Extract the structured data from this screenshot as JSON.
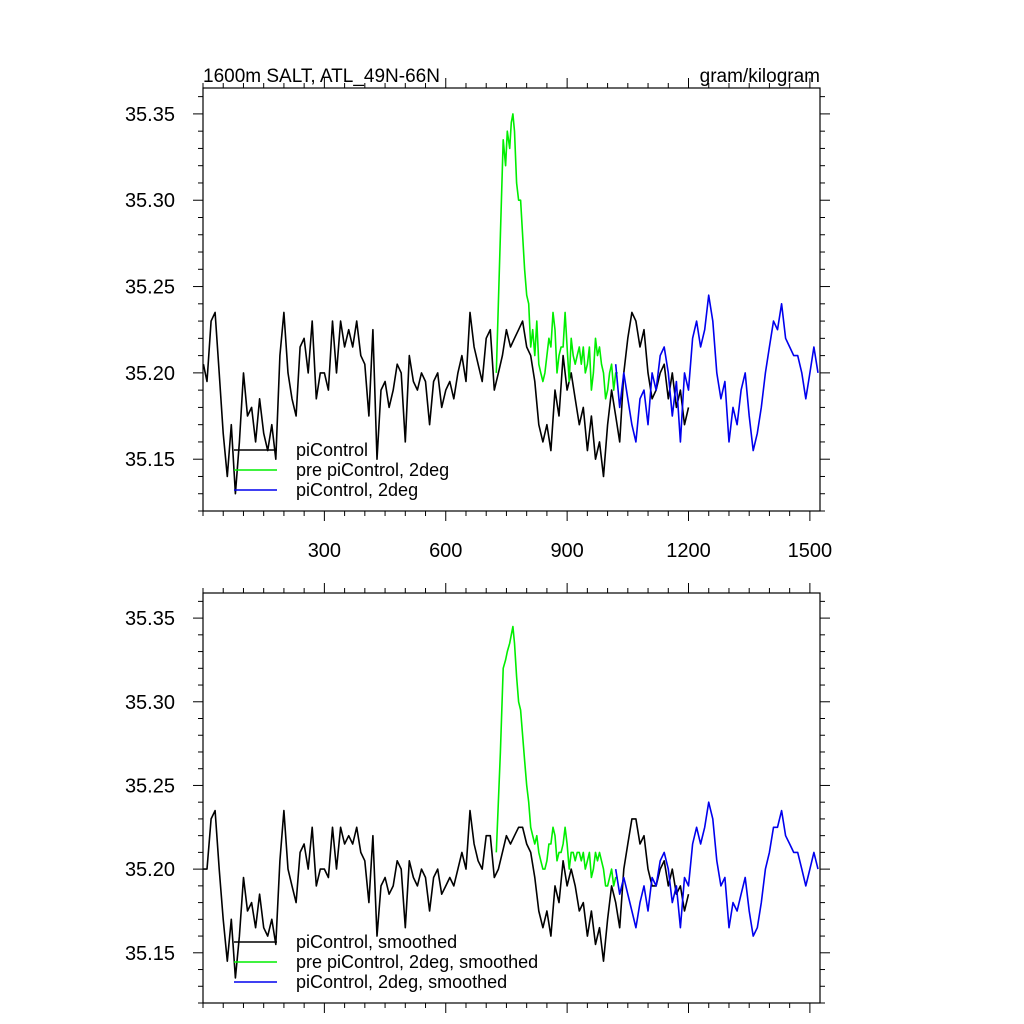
{
  "chart_data": [
    {
      "type": "line",
      "title": "1600m SALT, ATL_49N-66N",
      "units": "gram/kilogram",
      "xlim": [
        0,
        1525
      ],
      "ylim": [
        35.12,
        35.365
      ],
      "xticks": [
        300,
        600,
        900,
        1200,
        1500
      ],
      "yticks": [
        35.15,
        35.2,
        35.25,
        35.3,
        35.35
      ],
      "ytick_labels": [
        "35.15",
        "35.20",
        "35.25",
        "35.30",
        "35.35"
      ],
      "xtick_labels": [
        "300",
        "600",
        "900",
        "1200",
        "1500"
      ],
      "grid": false,
      "legend_position": "bottom-left",
      "series": [
        {
          "name": "piControl",
          "color": "#000000",
          "x": [
            1,
            10,
            20,
            30,
            40,
            50,
            60,
            70,
            80,
            90,
            100,
            110,
            120,
            130,
            140,
            150,
            160,
            170,
            180,
            190,
            200,
            210,
            220,
            230,
            240,
            250,
            260,
            270,
            280,
            290,
            300,
            310,
            320,
            330,
            340,
            350,
            360,
            370,
            380,
            390,
            400,
            410,
            420,
            430,
            440,
            450,
            460,
            470,
            480,
            490,
            500,
            510,
            520,
            530,
            540,
            550,
            560,
            570,
            580,
            590,
            600,
            610,
            620,
            630,
            640,
            650,
            660,
            670,
            680,
            690,
            700,
            710,
            720,
            730,
            740,
            750,
            760,
            770,
            780,
            790,
            800,
            810,
            820,
            830,
            840,
            850,
            860,
            870,
            880,
            890,
            900,
            910,
            920,
            930,
            940,
            950,
            960,
            970,
            980,
            990,
            1000,
            1010,
            1020,
            1030,
            1040,
            1050,
            1060,
            1070,
            1080,
            1090,
            1100,
            1110,
            1120,
            1130,
            1140,
            1150,
            1160,
            1170,
            1180,
            1190,
            1200
          ],
          "y": [
            35.205,
            35.195,
            35.23,
            35.235,
            35.2,
            35.165,
            35.14,
            35.17,
            35.13,
            35.16,
            35.2,
            35.175,
            35.18,
            35.16,
            35.185,
            35.165,
            35.155,
            35.17,
            35.15,
            35.21,
            35.235,
            35.2,
            35.185,
            35.175,
            35.215,
            35.22,
            35.2,
            35.23,
            35.185,
            35.2,
            35.2,
            35.19,
            35.23,
            35.2,
            35.23,
            35.215,
            35.225,
            35.215,
            35.23,
            35.21,
            35.205,
            35.175,
            35.225,
            35.15,
            35.19,
            35.195,
            35.18,
            35.19,
            35.205,
            35.2,
            35.16,
            35.21,
            35.195,
            35.19,
            35.2,
            35.195,
            35.17,
            35.195,
            35.2,
            35.18,
            35.19,
            35.195,
            35.185,
            35.2,
            35.21,
            35.195,
            35.235,
            35.215,
            35.205,
            35.195,
            35.22,
            35.225,
            35.19,
            35.2,
            35.21,
            35.225,
            35.215,
            35.22,
            35.225,
            35.23,
            35.215,
            35.21,
            35.195,
            35.17,
            35.16,
            35.17,
            35.155,
            35.19,
            35.175,
            35.21,
            35.19,
            35.2,
            35.185,
            35.17,
            35.18,
            35.155,
            35.175,
            35.15,
            35.16,
            35.14,
            35.17,
            35.19,
            35.175,
            35.16,
            35.2,
            35.22,
            35.235,
            35.23,
            35.215,
            35.225,
            35.2,
            35.185,
            35.19,
            35.2,
            35.205,
            35.185,
            35.2,
            35.18,
            35.19,
            35.17,
            35.18
          ]
        },
        {
          "name": "pre piControl, 2deg",
          "color": "#00ee00",
          "x": [
            725,
            735,
            742,
            748,
            752,
            758,
            762,
            766,
            770,
            775,
            780,
            785,
            790,
            795,
            800,
            805,
            810,
            815,
            820,
            825,
            830,
            835,
            840,
            845,
            850,
            855,
            860,
            865,
            870,
            875,
            880,
            885,
            890,
            895,
            900,
            905,
            910,
            915,
            920,
            925,
            930,
            935,
            940,
            945,
            950,
            955,
            960,
            965,
            970,
            975,
            980,
            985,
            990,
            995,
            1000,
            1005,
            1010,
            1015,
            1020,
            1025
          ],
          "y": [
            35.2,
            35.28,
            35.335,
            35.32,
            35.34,
            35.33,
            35.345,
            35.35,
            35.34,
            35.31,
            35.3,
            35.3,
            35.28,
            35.26,
            35.245,
            35.24,
            35.215,
            35.225,
            35.21,
            35.23,
            35.205,
            35.2,
            35.195,
            35.2,
            35.21,
            35.22,
            35.215,
            35.235,
            35.225,
            35.2,
            35.21,
            35.215,
            35.215,
            35.235,
            35.215,
            35.195,
            35.22,
            35.21,
            35.205,
            35.21,
            35.215,
            35.205,
            35.215,
            35.2,
            35.205,
            35.215,
            35.19,
            35.2,
            35.22,
            35.21,
            35.215,
            35.205,
            35.2,
            35.185,
            35.19,
            35.2,
            35.205,
            35.19,
            35.2,
            35.2
          ]
        },
        {
          "name": "piControl, 2deg",
          "color": "#0000ee",
          "x": [
            1020,
            1030,
            1040,
            1050,
            1060,
            1070,
            1080,
            1090,
            1100,
            1110,
            1120,
            1130,
            1140,
            1150,
            1160,
            1170,
            1180,
            1190,
            1200,
            1210,
            1220,
            1230,
            1240,
            1250,
            1260,
            1270,
            1280,
            1290,
            1300,
            1310,
            1320,
            1330,
            1340,
            1350,
            1360,
            1370,
            1380,
            1390,
            1400,
            1410,
            1420,
            1430,
            1440,
            1450,
            1460,
            1470,
            1480,
            1490,
            1500,
            1510,
            1520
          ],
          "y": [
            35.205,
            35.18,
            35.2,
            35.185,
            35.17,
            35.16,
            35.185,
            35.19,
            35.17,
            35.2,
            35.19,
            35.21,
            35.215,
            35.2,
            35.175,
            35.195,
            35.16,
            35.2,
            35.19,
            35.22,
            35.23,
            35.215,
            35.225,
            35.245,
            35.23,
            35.2,
            35.185,
            35.195,
            35.16,
            35.18,
            35.17,
            35.19,
            35.2,
            35.175,
            35.155,
            35.165,
            35.18,
            35.2,
            35.215,
            35.23,
            35.225,
            35.24,
            35.22,
            35.215,
            35.21,
            35.21,
            35.2,
            35.185,
            35.2,
            35.215,
            35.2
          ]
        }
      ]
    },
    {
      "type": "line",
      "xlim": [
        0,
        1525
      ],
      "ylim": [
        35.12,
        35.365
      ],
      "yticks": [
        35.15,
        35.2,
        35.25,
        35.3,
        35.35
      ],
      "ytick_labels": [
        "35.15",
        "35.20",
        "35.25",
        "35.30",
        "35.35"
      ],
      "grid": false,
      "legend_position": "bottom-left",
      "series": [
        {
          "name": "piControl, smoothed",
          "color": "#000000",
          "x": [
            1,
            10,
            20,
            30,
            40,
            50,
            60,
            70,
            80,
            90,
            100,
            110,
            120,
            130,
            140,
            150,
            160,
            170,
            180,
            190,
            200,
            210,
            220,
            230,
            240,
            250,
            260,
            270,
            280,
            290,
            300,
            310,
            320,
            330,
            340,
            350,
            360,
            370,
            380,
            390,
            400,
            410,
            420,
            430,
            440,
            450,
            460,
            470,
            480,
            490,
            500,
            510,
            520,
            530,
            540,
            550,
            560,
            570,
            580,
            590,
            600,
            610,
            620,
            630,
            640,
            650,
            660,
            670,
            680,
            690,
            700,
            710,
            720,
            730,
            740,
            750,
            760,
            770,
            780,
            790,
            800,
            810,
            820,
            830,
            840,
            850,
            860,
            870,
            880,
            890,
            900,
            910,
            920,
            930,
            940,
            950,
            960,
            970,
            980,
            990,
            1000,
            1010,
            1020,
            1030,
            1040,
            1050,
            1060,
            1070,
            1080,
            1090,
            1100,
            1110,
            1120,
            1130,
            1140,
            1150,
            1160,
            1170,
            1180,
            1190,
            1200
          ],
          "y": [
            35.2,
            35.2,
            35.23,
            35.235,
            35.2,
            35.17,
            35.145,
            35.17,
            35.135,
            35.16,
            35.195,
            35.175,
            35.18,
            35.165,
            35.185,
            35.165,
            35.16,
            35.17,
            35.155,
            35.205,
            35.235,
            35.2,
            35.19,
            35.18,
            35.21,
            35.215,
            35.2,
            35.225,
            35.19,
            35.2,
            35.2,
            35.195,
            35.225,
            35.2,
            35.225,
            35.215,
            35.22,
            35.215,
            35.225,
            35.21,
            35.205,
            35.18,
            35.22,
            35.16,
            35.19,
            35.195,
            35.185,
            35.19,
            35.205,
            35.2,
            35.165,
            35.205,
            35.195,
            35.19,
            35.2,
            35.195,
            35.175,
            35.195,
            35.2,
            35.185,
            35.19,
            35.195,
            35.19,
            35.2,
            35.21,
            35.2,
            35.235,
            35.215,
            35.205,
            35.2,
            35.22,
            35.22,
            35.195,
            35.2,
            35.21,
            35.22,
            35.215,
            35.22,
            35.225,
            35.225,
            35.215,
            35.21,
            35.195,
            35.175,
            35.165,
            35.175,
            35.16,
            35.19,
            35.18,
            35.205,
            35.19,
            35.2,
            35.19,
            35.175,
            35.18,
            35.16,
            35.175,
            35.155,
            35.165,
            35.145,
            35.17,
            35.19,
            35.18,
            35.165,
            35.2,
            35.215,
            35.23,
            35.23,
            35.215,
            35.22,
            35.2,
            35.19,
            35.19,
            35.2,
            35.205,
            35.19,
            35.2,
            35.185,
            35.19,
            35.175,
            35.185
          ]
        },
        {
          "name": "pre piControl, 2deg, smoothed",
          "color": "#00ee00",
          "x": [
            725,
            735,
            742,
            748,
            752,
            758,
            762,
            766,
            770,
            775,
            780,
            785,
            790,
            795,
            800,
            805,
            810,
            815,
            820,
            825,
            830,
            835,
            840,
            845,
            850,
            855,
            860,
            865,
            870,
            875,
            880,
            885,
            890,
            895,
            900,
            905,
            910,
            915,
            920,
            925,
            930,
            935,
            940,
            945,
            950,
            955,
            960,
            965,
            970,
            975,
            980,
            985,
            990,
            995,
            1000,
            1005,
            1010,
            1015,
            1020,
            1025
          ],
          "y": [
            35.21,
            35.27,
            35.32,
            35.325,
            35.33,
            35.335,
            35.34,
            35.345,
            35.335,
            35.315,
            35.3,
            35.295,
            35.28,
            35.265,
            35.25,
            35.24,
            35.225,
            35.22,
            35.215,
            35.22,
            35.21,
            35.205,
            35.2,
            35.2,
            35.205,
            35.215,
            35.215,
            35.225,
            35.22,
            35.205,
            35.21,
            35.21,
            35.215,
            35.225,
            35.215,
            35.2,
            35.21,
            35.21,
            35.205,
            35.21,
            35.21,
            35.205,
            35.21,
            35.2,
            35.205,
            35.21,
            35.195,
            35.2,
            35.21,
            35.205,
            35.21,
            35.205,
            35.2,
            35.19,
            35.19,
            35.195,
            35.2,
            35.19,
            35.195,
            35.195
          ]
        },
        {
          "name": "piControl, 2deg, smoothed",
          "color": "#0000ee",
          "x": [
            1020,
            1030,
            1040,
            1050,
            1060,
            1070,
            1080,
            1090,
            1100,
            1110,
            1120,
            1130,
            1140,
            1150,
            1160,
            1170,
            1180,
            1190,
            1200,
            1210,
            1220,
            1230,
            1240,
            1250,
            1260,
            1270,
            1280,
            1290,
            1300,
            1310,
            1320,
            1330,
            1340,
            1350,
            1360,
            1370,
            1380,
            1390,
            1400,
            1410,
            1420,
            1430,
            1440,
            1450,
            1460,
            1470,
            1480,
            1490,
            1500,
            1510,
            1520
          ],
          "y": [
            35.2,
            35.185,
            35.195,
            35.185,
            35.175,
            35.165,
            35.18,
            35.19,
            35.175,
            35.195,
            35.19,
            35.205,
            35.21,
            35.2,
            35.18,
            35.19,
            35.165,
            35.195,
            35.19,
            35.215,
            35.225,
            35.215,
            35.225,
            35.24,
            35.23,
            35.205,
            35.19,
            35.195,
            35.165,
            35.18,
            35.175,
            35.185,
            35.195,
            35.175,
            35.16,
            35.165,
            35.18,
            35.2,
            35.21,
            35.225,
            35.225,
            35.235,
            35.22,
            35.215,
            35.21,
            35.21,
            35.2,
            35.19,
            35.2,
            35.21,
            35.2
          ]
        }
      ]
    }
  ]
}
